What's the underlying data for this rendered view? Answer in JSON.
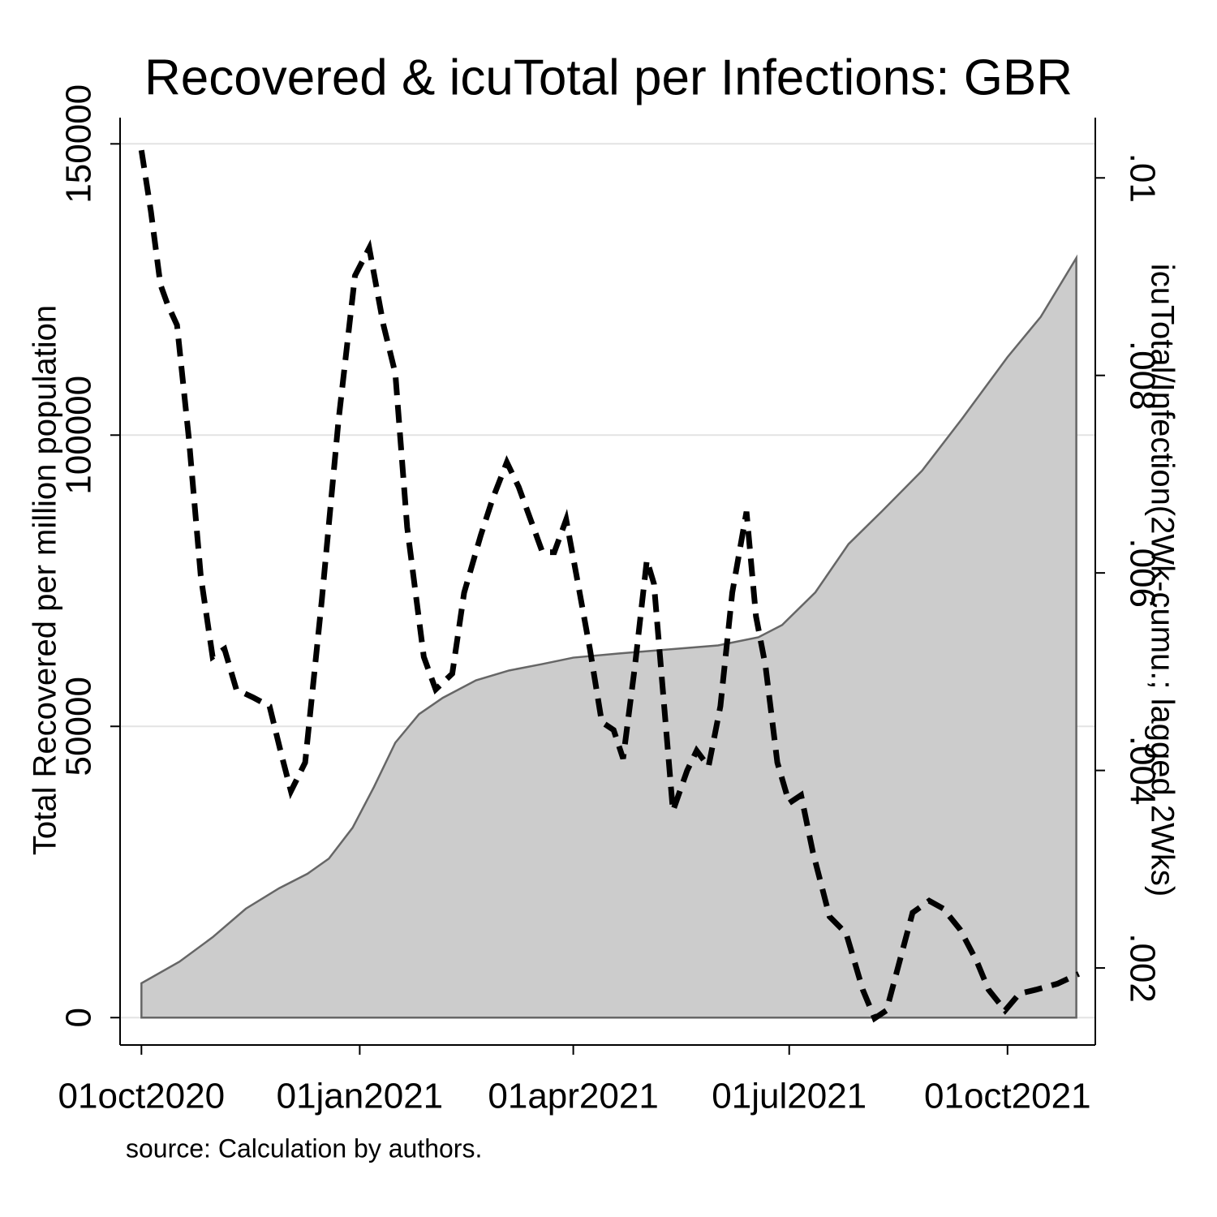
{
  "chart_data": {
    "type": "combo",
    "title": "Recovered & icuTotal per Infections: GBR",
    "ylabel": "Total Recovered per million population",
    "y2label": "icuTotal/Infection(2Wk-cumu.; lagged 2Wks)",
    "note": "source: Calculation by authors.",
    "xlim": [
      "2020-09-22",
      "2021-11-07"
    ],
    "xticks": [
      {
        "value": "2020-10-01",
        "label": "01oct2020"
      },
      {
        "value": "2021-01-01",
        "label": "01jan2021"
      },
      {
        "value": "2021-04-01",
        "label": "01apr2021"
      },
      {
        "value": "2021-07-01",
        "label": "01jul2021"
      },
      {
        "value": "2021-10-01",
        "label": "01oct2021"
      }
    ],
    "ylim": [
      -4700,
      154500
    ],
    "yticks": [
      0,
      50000,
      100000,
      150000
    ],
    "y2lim": [
      0.00122,
      0.01061
    ],
    "y2ticks": [
      {
        "value": 0.002,
        "label": ".002"
      },
      {
        "value": 0.004,
        "label": ".004"
      },
      {
        "value": 0.006,
        "label": ".006"
      },
      {
        "value": 0.008,
        "label": ".008"
      },
      {
        "value": 0.01,
        "label": ".01"
      }
    ],
    "grid": true,
    "series": [
      {
        "type": "area",
        "color": "#cccccc",
        "line_color": "#666666",
        "x": [
          "2020-10-01",
          "2020-10-17",
          "2020-10-31",
          "2020-11-14",
          "2020-11-28",
          "2020-12-10",
          "2020-12-19",
          "2020-12-29",
          "2021-01-07",
          "2021-01-16",
          "2021-01-26",
          "2021-02-05",
          "2021-02-19",
          "2021-03-05",
          "2021-03-19",
          "2021-04-01",
          "2021-04-20",
          "2021-05-11",
          "2021-06-01",
          "2021-06-18",
          "2021-06-28",
          "2021-07-12",
          "2021-07-26",
          "2021-08-09",
          "2021-08-26",
          "2021-09-12",
          "2021-10-01",
          "2021-10-15",
          "2021-10-30"
        ],
        "values": [
          5900,
          9600,
          13800,
          18700,
          22200,
          24700,
          27300,
          32600,
          39600,
          47200,
          52100,
          54900,
          57900,
          59600,
          60700,
          61800,
          62500,
          63200,
          63900,
          65300,
          67400,
          73000,
          81300,
          86900,
          93900,
          102900,
          113400,
          120300,
          130400
        ]
      },
      {
        "type": "line",
        "axis": "y2",
        "color": "#000000",
        "dash": true,
        "x": [
          "2020-10-01",
          "2020-10-05",
          "2020-10-09",
          "2020-10-12",
          "2020-10-16",
          "2020-10-21",
          "2020-10-26",
          "2020-10-31",
          "2020-11-05",
          "2020-11-10",
          "2020-11-17",
          "2020-11-24",
          "2020-11-29",
          "2020-12-03",
          "2020-12-09",
          "2020-12-16",
          "2020-12-23",
          "2020-12-30",
          "2021-01-05",
          "2021-01-11",
          "2021-01-16",
          "2021-01-21",
          "2021-01-28",
          "2021-02-02",
          "2021-02-09",
          "2021-02-14",
          "2021-02-21",
          "2021-02-26",
          "2021-03-04",
          "2021-03-09",
          "2021-03-14",
          "2021-03-19",
          "2021-03-24",
          "2021-03-29",
          "2021-04-03",
          "2021-04-08",
          "2021-04-13",
          "2021-04-18",
          "2021-04-22",
          "2021-04-27",
          "2021-05-02",
          "2021-05-05",
          "2021-05-09",
          "2021-05-13",
          "2021-05-19",
          "2021-05-23",
          "2021-05-28",
          "2021-06-02",
          "2021-06-07",
          "2021-06-13",
          "2021-06-17",
          "2021-06-21",
          "2021-06-26",
          "2021-07-01",
          "2021-07-06",
          "2021-07-11",
          "2021-07-18",
          "2021-07-25",
          "2021-08-01",
          "2021-08-06",
          "2021-08-11",
          "2021-08-16",
          "2021-08-22",
          "2021-08-29",
          "2021-09-04",
          "2021-09-11",
          "2021-09-18",
          "2021-09-23",
          "2021-09-30",
          "2021-10-06",
          "2021-10-13",
          "2021-10-22",
          "2021-10-31"
        ],
        "values": [
          0.01028,
          0.00966,
          0.00892,
          0.00872,
          0.00851,
          0.00736,
          0.00597,
          0.00515,
          0.00523,
          0.00482,
          0.00474,
          0.00465,
          0.00416,
          0.00379,
          0.00408,
          0.00572,
          0.00753,
          0.00901,
          0.00929,
          0.00851,
          0.00802,
          0.00646,
          0.00515,
          0.00482,
          0.00498,
          0.0058,
          0.00638,
          0.00675,
          0.00712,
          0.00687,
          0.00654,
          0.00621,
          0.00621,
          0.00654,
          0.00589,
          0.00523,
          0.00449,
          0.00441,
          0.00412,
          0.00506,
          0.00613,
          0.00589,
          0.00474,
          0.00359,
          0.004,
          0.0042,
          0.00404,
          0.00465,
          0.0058,
          0.00662,
          0.00556,
          0.00506,
          0.00408,
          0.00367,
          0.00375,
          0.00317,
          0.00252,
          0.00235,
          0.00178,
          0.00149,
          0.00157,
          0.00202,
          0.00256,
          0.00268,
          0.0026,
          0.00239,
          0.00207,
          0.00178,
          0.00157,
          0.00174,
          0.00178,
          0.00184,
          0.00194
        ]
      }
    ]
  }
}
